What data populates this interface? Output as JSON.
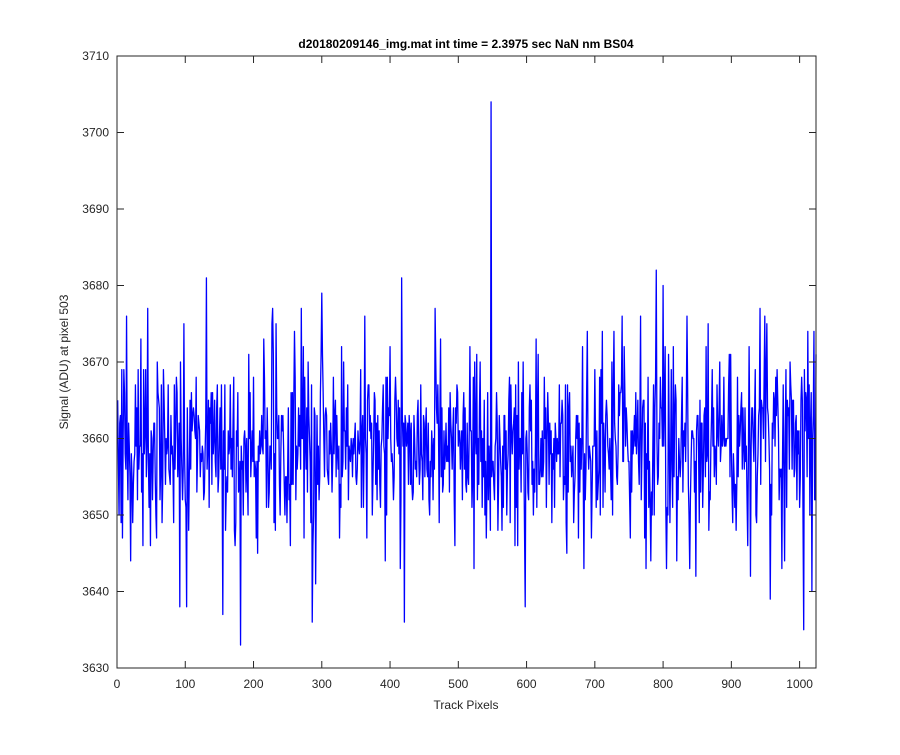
{
  "window": {
    "title": ""
  },
  "chart_data": {
    "type": "line",
    "title": "d20180209146_img.mat int time = 2.3975 sec  NaN nm BS04",
    "xlabel": "Track Pixels",
    "ylabel": "Signal (ADU) at pixel 503",
    "xlim": [
      0,
      1024
    ],
    "ylim": [
      3630,
      3710
    ],
    "xticks": [
      0,
      100,
      200,
      300,
      400,
      500,
      600,
      700,
      800,
      900,
      1000
    ],
    "yticks": [
      3630,
      3640,
      3650,
      3660,
      3670,
      3680,
      3690,
      3700,
      3710
    ],
    "x_tick_labels": [
      "0",
      "100",
      "200",
      "300",
      "400",
      "500",
      "600",
      "700",
      "800",
      "900",
      "1000"
    ],
    "y_tick_labels": [
      "3630",
      "3640",
      "3650",
      "3660",
      "3670",
      "3680",
      "3690",
      "3700",
      "3710"
    ],
    "grid": false,
    "box": true,
    "series": [
      {
        "color": "#0000ff",
        "x_start": 1,
        "x_step": 1,
        "count": 1024,
        "baseline": 3659,
        "noise_std": 6,
        "features": [
          {
            "x": 1,
            "y": 3665
          },
          {
            "x": 3,
            "y": 3650
          },
          {
            "x": 7,
            "y": 3669
          },
          {
            "x": 35,
            "y": 3673
          },
          {
            "x": 38,
            "y": 3646
          },
          {
            "x": 45,
            "y": 3677
          },
          {
            "x": 49,
            "y": 3646
          },
          {
            "x": 92,
            "y": 3638
          },
          {
            "x": 98,
            "y": 3675
          },
          {
            "x": 102,
            "y": 3638
          },
          {
            "x": 131,
            "y": 3681
          },
          {
            "x": 155,
            "y": 3637
          },
          {
            "x": 181,
            "y": 3633
          },
          {
            "x": 228,
            "y": 3677
          },
          {
            "x": 270,
            "y": 3677
          },
          {
            "x": 286,
            "y": 3636
          },
          {
            "x": 291,
            "y": 3641
          },
          {
            "x": 300,
            "y": 3679
          },
          {
            "x": 417,
            "y": 3681
          },
          {
            "x": 421,
            "y": 3636
          },
          {
            "x": 466,
            "y": 3677
          },
          {
            "x": 548,
            "y": 3704
          },
          {
            "x": 598,
            "y": 3638
          },
          {
            "x": 614,
            "y": 3673
          },
          {
            "x": 700,
            "y": 3669
          },
          {
            "x": 790,
            "y": 3682
          },
          {
            "x": 800,
            "y": 3680
          },
          {
            "x": 835,
            "y": 3676
          },
          {
            "x": 848,
            "y": 3642
          },
          {
            "x": 928,
            "y": 3642
          },
          {
            "x": 942,
            "y": 3677
          },
          {
            "x": 957,
            "y": 3639
          },
          {
            "x": 1006,
            "y": 3635
          },
          {
            "x": 1012,
            "y": 3674
          },
          {
            "x": 1018,
            "y": 3640
          },
          {
            "x": 1024,
            "y": 3671
          }
        ]
      }
    ]
  }
}
